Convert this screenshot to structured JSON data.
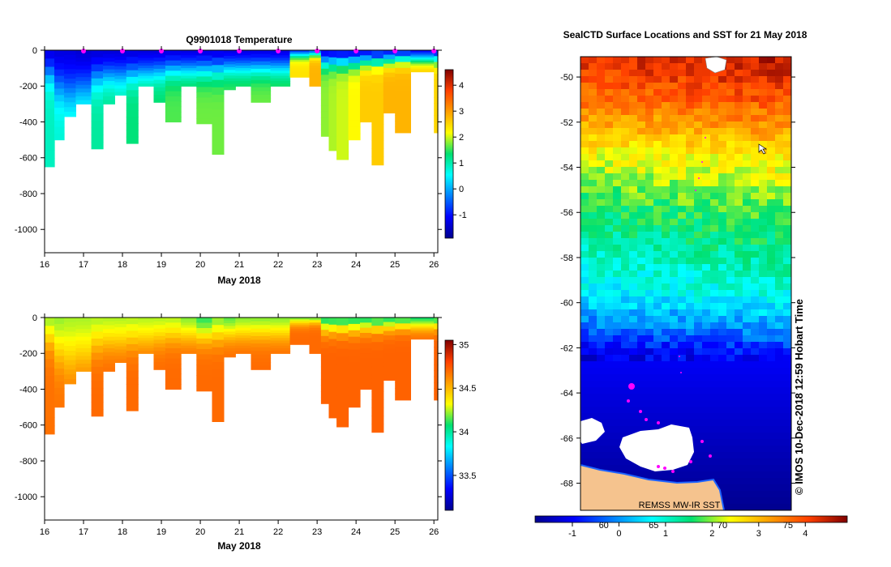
{
  "chart_data": [
    {
      "type": "heatmap",
      "title": "Q9901018  Temperature",
      "xlabel": "May 2018",
      "ylabel": "",
      "x_ticks": [
        "16",
        "17",
        "18",
        "19",
        "20",
        "21",
        "22",
        "23",
        "24",
        "25",
        "26"
      ],
      "y_ticks": [
        "0",
        "-200",
        "-400",
        "-600",
        "-800",
        "-1000"
      ],
      "xlim": [
        16,
        26.1
      ],
      "ylim": [
        -1130,
        0
      ],
      "colorbar": {
        "ticks": [
          "-1",
          "0",
          "1",
          "2",
          "3",
          "4"
        ],
        "range": [
          -1.9,
          4.6
        ]
      },
      "surface_markers_x": [
        17,
        18,
        19,
        20,
        21,
        22,
        23,
        24,
        25,
        26
      ],
      "profiles": [
        {
          "x": 16.0,
          "depth": 650,
          "surface": -1.5,
          "deep": 0.9,
          "thermocline": 120
        },
        {
          "x": 16.25,
          "depth": 500,
          "surface": -1.5,
          "deep": 0.8,
          "thermocline": 190
        },
        {
          "x": 16.5,
          "depth": 370,
          "surface": -1.5,
          "deep": 0.9,
          "thermocline": 220
        },
        {
          "x": 16.8,
          "depth": 300,
          "surface": -1.6,
          "deep": 1.0,
          "thermocline": 200
        },
        {
          "x": 17.2,
          "depth": 550,
          "surface": -1.6,
          "deep": 1.1,
          "thermocline": 140
        },
        {
          "x": 17.5,
          "depth": 300,
          "surface": -1.6,
          "deep": 1.2,
          "thermocline": 130
        },
        {
          "x": 17.8,
          "depth": 250,
          "surface": -1.6,
          "deep": 1.1,
          "thermocline": 130
        },
        {
          "x": 18.1,
          "depth": 520,
          "surface": -1.6,
          "deep": 1.3,
          "thermocline": 120
        },
        {
          "x": 18.4,
          "depth": 200,
          "surface": -1.6,
          "deep": 1.5,
          "thermocline": 120
        },
        {
          "x": 18.8,
          "depth": 290,
          "surface": -1.6,
          "deep": 1.4,
          "thermocline": 110
        },
        {
          "x": 19.1,
          "depth": 400,
          "surface": -1.6,
          "deep": 1.6,
          "thermocline": 100
        },
        {
          "x": 19.5,
          "depth": 200,
          "surface": -1.6,
          "deep": 1.6,
          "thermocline": 100
        },
        {
          "x": 19.9,
          "depth": 410,
          "surface": -1.6,
          "deep": 1.7,
          "thermocline": 100
        },
        {
          "x": 20.3,
          "depth": 580,
          "surface": -1.6,
          "deep": 1.7,
          "thermocline": 100
        },
        {
          "x": 20.6,
          "depth": 220,
          "surface": -1.6,
          "deep": 1.6,
          "thermocline": 90
        },
        {
          "x": 20.9,
          "depth": 200,
          "surface": -1.6,
          "deep": 1.6,
          "thermocline": 90
        },
        {
          "x": 21.3,
          "depth": 290,
          "surface": -1.6,
          "deep": 1.7,
          "thermocline": 90
        },
        {
          "x": 21.8,
          "depth": 200,
          "surface": -1.6,
          "deep": 1.6,
          "thermocline": 90
        },
        {
          "x": 22.3,
          "depth": 150,
          "surface": -1.6,
          "deep": 2.4,
          "thermocline": 25
        },
        {
          "x": 22.8,
          "depth": 200,
          "surface": -1.6,
          "deep": 2.8,
          "thermocline": 20
        },
        {
          "x": 23.1,
          "depth": 480,
          "surface": -1.7,
          "deep": 1.8,
          "thermocline": 60
        },
        {
          "x": 23.3,
          "depth": 560,
          "surface": -1.7,
          "deep": 1.9,
          "thermocline": 60
        },
        {
          "x": 23.5,
          "depth": 610,
          "surface": -1.7,
          "deep": 2.0,
          "thermocline": 60
        },
        {
          "x": 23.8,
          "depth": 500,
          "surface": -1.7,
          "deep": 2.2,
          "thermocline": 60
        },
        {
          "x": 24.1,
          "depth": 400,
          "surface": -1.7,
          "deep": 2.6,
          "thermocline": 55
        },
        {
          "x": 24.4,
          "depth": 640,
          "surface": -1.7,
          "deep": 2.6,
          "thermocline": 55
        },
        {
          "x": 24.7,
          "depth": 350,
          "surface": -1.7,
          "deep": 2.8,
          "thermocline": 50
        },
        {
          "x": 25.0,
          "depth": 460,
          "surface": -1.7,
          "deep": 2.8,
          "thermocline": 45
        },
        {
          "x": 25.4,
          "depth": 120,
          "surface": -1.7,
          "deep": 2.7,
          "thermocline": 45
        },
        {
          "x": 26.0,
          "depth": 460,
          "surface": -1.7,
          "deep": 2.5,
          "thermocline": 45
        }
      ]
    },
    {
      "type": "heatmap",
      "title": "",
      "xlabel": "May 2018",
      "ylabel": "",
      "x_ticks": [
        "16",
        "17",
        "18",
        "19",
        "20",
        "21",
        "22",
        "23",
        "24",
        "25",
        "26"
      ],
      "y_ticks": [
        "0",
        "-200",
        "-400",
        "-600",
        "-800",
        "-1000"
      ],
      "xlim": [
        16,
        26.1
      ],
      "ylim": [
        -1130,
        0
      ],
      "colorbar": {
        "ticks": [
          "33.5",
          "34",
          "34.5",
          "35"
        ],
        "range": [
          33.1,
          35.05
        ]
      },
      "profiles": [
        {
          "x": 16.0,
          "depth": 650,
          "surface": 34.18,
          "deep": 34.68,
          "halocline": 120
        },
        {
          "x": 16.25,
          "depth": 500,
          "surface": 34.18,
          "deep": 34.68,
          "halocline": 190
        },
        {
          "x": 16.5,
          "depth": 370,
          "surface": 34.2,
          "deep": 34.68,
          "halocline": 220
        },
        {
          "x": 16.8,
          "depth": 300,
          "surface": 34.2,
          "deep": 34.68,
          "halocline": 200
        },
        {
          "x": 17.2,
          "depth": 550,
          "surface": 34.2,
          "deep": 34.7,
          "halocline": 140
        },
        {
          "x": 17.5,
          "depth": 300,
          "surface": 34.2,
          "deep": 34.7,
          "halocline": 130
        },
        {
          "x": 17.8,
          "depth": 250,
          "surface": 34.2,
          "deep": 34.7,
          "halocline": 130
        },
        {
          "x": 18.1,
          "depth": 520,
          "surface": 34.2,
          "deep": 34.7,
          "halocline": 120
        },
        {
          "x": 18.4,
          "depth": 200,
          "surface": 34.2,
          "deep": 34.7,
          "halocline": 120
        },
        {
          "x": 18.8,
          "depth": 290,
          "surface": 34.2,
          "deep": 34.7,
          "halocline": 110
        },
        {
          "x": 19.1,
          "depth": 400,
          "surface": 34.2,
          "deep": 34.7,
          "halocline": 100
        },
        {
          "x": 19.5,
          "depth": 200,
          "surface": 34.15,
          "deep": 34.7,
          "halocline": 100
        },
        {
          "x": 19.9,
          "depth": 410,
          "surface": 34.05,
          "deep": 34.7,
          "halocline": 100
        },
        {
          "x": 20.3,
          "depth": 580,
          "surface": 34.15,
          "deep": 34.7,
          "halocline": 100
        },
        {
          "x": 20.6,
          "depth": 220,
          "surface": 34.1,
          "deep": 34.7,
          "halocline": 90
        },
        {
          "x": 20.9,
          "depth": 200,
          "surface": 34.15,
          "deep": 34.7,
          "halocline": 90
        },
        {
          "x": 21.3,
          "depth": 290,
          "surface": 34.15,
          "deep": 34.7,
          "halocline": 90
        },
        {
          "x": 21.8,
          "depth": 200,
          "surface": 34.15,
          "deep": 34.7,
          "halocline": 90
        },
        {
          "x": 22.3,
          "depth": 150,
          "surface": 34.05,
          "deep": 34.7,
          "halocline": 25
        },
        {
          "x": 22.8,
          "depth": 200,
          "surface": 34.0,
          "deep": 34.7,
          "halocline": 20
        },
        {
          "x": 23.1,
          "depth": 480,
          "surface": 33.98,
          "deep": 34.72,
          "halocline": 60
        },
        {
          "x": 23.3,
          "depth": 560,
          "surface": 33.98,
          "deep": 34.72,
          "halocline": 60
        },
        {
          "x": 23.5,
          "depth": 610,
          "surface": 33.98,
          "deep": 34.72,
          "halocline": 60
        },
        {
          "x": 23.8,
          "depth": 500,
          "surface": 33.98,
          "deep": 34.72,
          "halocline": 60
        },
        {
          "x": 24.1,
          "depth": 400,
          "surface": 33.98,
          "deep": 34.72,
          "halocline": 55
        },
        {
          "x": 24.4,
          "depth": 640,
          "surface": 33.98,
          "deep": 34.72,
          "halocline": 55
        },
        {
          "x": 24.7,
          "depth": 350,
          "surface": 33.98,
          "deep": 34.72,
          "halocline": 50
        },
        {
          "x": 25.0,
          "depth": 460,
          "surface": 33.98,
          "deep": 34.72,
          "halocline": 45
        },
        {
          "x": 25.4,
          "depth": 120,
          "surface": 33.98,
          "deep": 34.7,
          "halocline": 45
        },
        {
          "x": 26.0,
          "depth": 460,
          "surface": 33.98,
          "deep": 34.72,
          "halocline": 45
        }
      ]
    },
    {
      "type": "heatmap",
      "title": "SealCTD Surface Locations and SST for 21 May 2018",
      "xlabel": "",
      "ylabel": "",
      "y_ticks": [
        "-50",
        "-52",
        "-54",
        "-56",
        "-58",
        "-60",
        "-62",
        "-64",
        "-66",
        "-68"
      ],
      "ylim": [
        -69.2,
        -49.1
      ],
      "lat_bands": [
        {
          "lat": -49.1,
          "value": 4.4
        },
        {
          "lat": -50.5,
          "value": 4.0
        },
        {
          "lat": -52.0,
          "value": 3.3
        },
        {
          "lat": -53.5,
          "value": 2.5
        },
        {
          "lat": -55.5,
          "value": 1.8
        },
        {
          "lat": -57.5,
          "value": 1.3
        },
        {
          "lat": -59.5,
          "value": 0.8
        },
        {
          "lat": -61.0,
          "value": 0.0
        },
        {
          "lat": -62.3,
          "value": -1.0
        },
        {
          "lat": -69.2,
          "value": -1.8
        }
      ],
      "colorbar": {
        "ticks_bottom": [
          "-1",
          "0",
          "1",
          "2",
          "3",
          "4"
        ],
        "ticks_top": [
          "60",
          "65",
          "70",
          "75"
        ],
        "range": [
          -1.8,
          4.9
        ]
      },
      "annotations": {
        "source": "REMSS MW-IR SST",
        "credit": "© IMOS 10-Dec-2018 12:59 Hobart Time"
      },
      "colors": {
        "ice": "#ffffff",
        "land": "#f5c38e",
        "track": "#ff00ff"
      }
    }
  ]
}
